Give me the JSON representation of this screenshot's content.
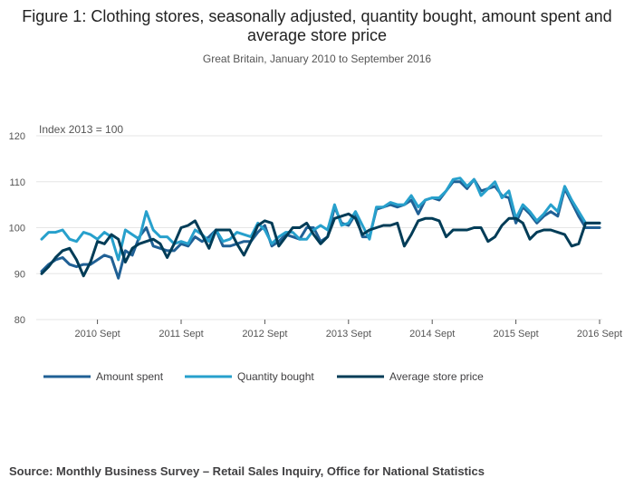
{
  "title": "Figure 1: Clothing stores, seasonally adjusted, quantity bought, amount spent and average store price",
  "subtitle": "Great Britain, January 2010 to September 2016",
  "source": "Source: Monthly Business Survey – Retail Sales Inquiry, Office for National Statistics",
  "chart_data": {
    "type": "line",
    "title": "Figure 1: Clothing stores, seasonally adjusted, quantity bought, amount spent and average store price",
    "ylabel": "Index 2013 = 100",
    "xlabel": "",
    "ylim": [
      80,
      120
    ],
    "yticks": [
      80,
      90,
      100,
      110,
      120
    ],
    "x_start": "2010-01",
    "n_points": 81,
    "xticks": [
      {
        "index": 8,
        "label": "2010 Sept"
      },
      {
        "index": 20,
        "label": "2011 Sept"
      },
      {
        "index": 32,
        "label": "2012 Sept"
      },
      {
        "index": 44,
        "label": "2013 Sept"
      },
      {
        "index": 56,
        "label": "2014 Sept"
      },
      {
        "index": 68,
        "label": "2015 Sept"
      },
      {
        "index": 80,
        "label": "2016 Sept"
      }
    ],
    "grid": true,
    "legend_position": "bottom-left",
    "series": [
      {
        "name": "Amount spent",
        "color": "#206095",
        "values": [
          90.5,
          92,
          93,
          93.5,
          92,
          91.5,
          92,
          92,
          93,
          94,
          93.5,
          89,
          95,
          94,
          98,
          100,
          96,
          95.5,
          95,
          95,
          96.5,
          96,
          98,
          97,
          98,
          99.5,
          96,
          96,
          96.5,
          97,
          97,
          99,
          100.5,
          96,
          97,
          98.5,
          98,
          97.5,
          100,
          100,
          97,
          98,
          104.5,
          101,
          100.5,
          103,
          98,
          98,
          104,
          104.5,
          105,
          104.5,
          105,
          106,
          103,
          106,
          106.5,
          106,
          108,
          110,
          110,
          108.5,
          110.5,
          108,
          108.5,
          109,
          107,
          106.5,
          101,
          104.5,
          103,
          101,
          102.5,
          103.5,
          102.5,
          108.5,
          105.5,
          102.5,
          100,
          100,
          100
        ]
      },
      {
        "name": "Quantity bought",
        "color": "#27a0cc",
        "values": [
          97.5,
          99,
          99,
          99.5,
          97.5,
          97,
          99,
          98.5,
          97.5,
          99,
          98,
          93,
          99.5,
          98.5,
          97.5,
          103.5,
          99.5,
          98,
          98,
          96.5,
          97,
          96.5,
          99.5,
          98.5,
          97,
          99.5,
          97,
          97.5,
          99,
          98.5,
          98,
          101,
          99.5,
          96.5,
          98,
          99,
          99,
          97.5,
          97.5,
          99.5,
          100.5,
          99.5,
          105,
          100.5,
          101,
          103.5,
          100.5,
          97.5,
          104.5,
          104.5,
          105.5,
          105,
          105,
          107,
          104.5,
          106,
          106.5,
          106.5,
          108,
          110.5,
          110.8,
          109,
          110.5,
          107,
          108.5,
          110,
          106.5,
          108,
          102,
          105,
          103.5,
          101.5,
          103,
          105,
          103.5,
          109,
          106,
          103.5,
          101,
          101,
          101
        ]
      },
      {
        "name": "Average store price",
        "color": "#003c57",
        "values": [
          90,
          91.5,
          93.5,
          95,
          95.5,
          93,
          89.5,
          92.5,
          97,
          96.5,
          98.5,
          97.5,
          92.5,
          95.5,
          96.5,
          97,
          97.5,
          96.5,
          93.5,
          96.5,
          100,
          100.5,
          101.5,
          98.5,
          95.5,
          99.5,
          99.5,
          99.5,
          96.5,
          94,
          97,
          100.5,
          101.5,
          101,
          96,
          98,
          100,
          100,
          101,
          98.5,
          96.5,
          98,
          102,
          102.5,
          103,
          102,
          98.5,
          99.5,
          100,
          100.5,
          100.5,
          101,
          96,
          98.5,
          101.5,
          102,
          102,
          101.5,
          98,
          99.5,
          99.5,
          99.5,
          100,
          100,
          97,
          98,
          100.5,
          102,
          102,
          101,
          97.5,
          99,
          99.5,
          99.5,
          99,
          98.5,
          96,
          96.5,
          101,
          101,
          101
        ]
      }
    ]
  }
}
